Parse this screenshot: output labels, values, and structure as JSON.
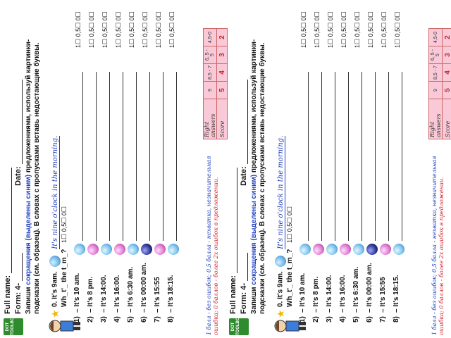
{
  "worksheet": {
    "logo": "DOT\nTOOLBOX",
    "full_name_label": "Full name:",
    "form_label": "Form: 4-",
    "date_label": "Date:",
    "instruction_start": "Запиши ",
    "instruction_highlight": "сокращения (выделены синим)",
    "instruction_end": " предложениями, используй картинки-подсказки (см. образец). В словах с пропусками вставь недостающие буквы.",
    "example_prefix": "0. It's 9am.",
    "example_answer": "It's nine o'clock in the morning.",
    "question": "Wh_t'_ the t_m_?",
    "score_options": "1☐   0,5☐   0☐",
    "rows": [
      {
        "num": "1)",
        "text": "– It's 10 am.",
        "opts": "1☐   0,5☐   0☐"
      },
      {
        "num": "2)",
        "text": "– It's 8 pm.",
        "opts": "1☐   0,5☐   0☐"
      },
      {
        "num": "3)",
        "text": "– It's 14:00.",
        "opts": "1☐   0,5☐   0☐"
      },
      {
        "num": "4)",
        "text": "– It's 16:00.",
        "opts": "1☐   0,5☐   0☐"
      },
      {
        "num": "5)",
        "text": "– It's 6:30 am.",
        "opts": "1☐   0,5☐   0☐"
      },
      {
        "num": "6)",
        "text": "– It's 00:00 am.",
        "opts": "1☐   0,5☐   0☐"
      },
      {
        "num": "7)",
        "text": "– It's 15:55",
        "opts": "1☐   0,5☐   0☐"
      },
      {
        "num": "8)",
        "text": "– It's 18:15.",
        "opts": "1☐   0,5☐   0☐"
      }
    ],
    "footer_blue": "1 балл - без ошибок; 0,5 балла - нехватка, незначительная ",
    "footer_red": "ошибка; 0 баллов - более 2х ошибок в предложении.",
    "score_table": {
      "answers_label": "Right answers",
      "score_label": "Score",
      "answers": [
        "9",
        "8,5 - 7",
        "6, 5 - 5",
        "4,5-0"
      ],
      "scores": [
        "5",
        "4",
        "3",
        "2"
      ]
    }
  },
  "colors": {
    "highlight_blue": "#1e3fbf",
    "logo_green": "#2e8b2e",
    "table_pink": "#f9c9d7",
    "score_red": "#c7262c"
  }
}
